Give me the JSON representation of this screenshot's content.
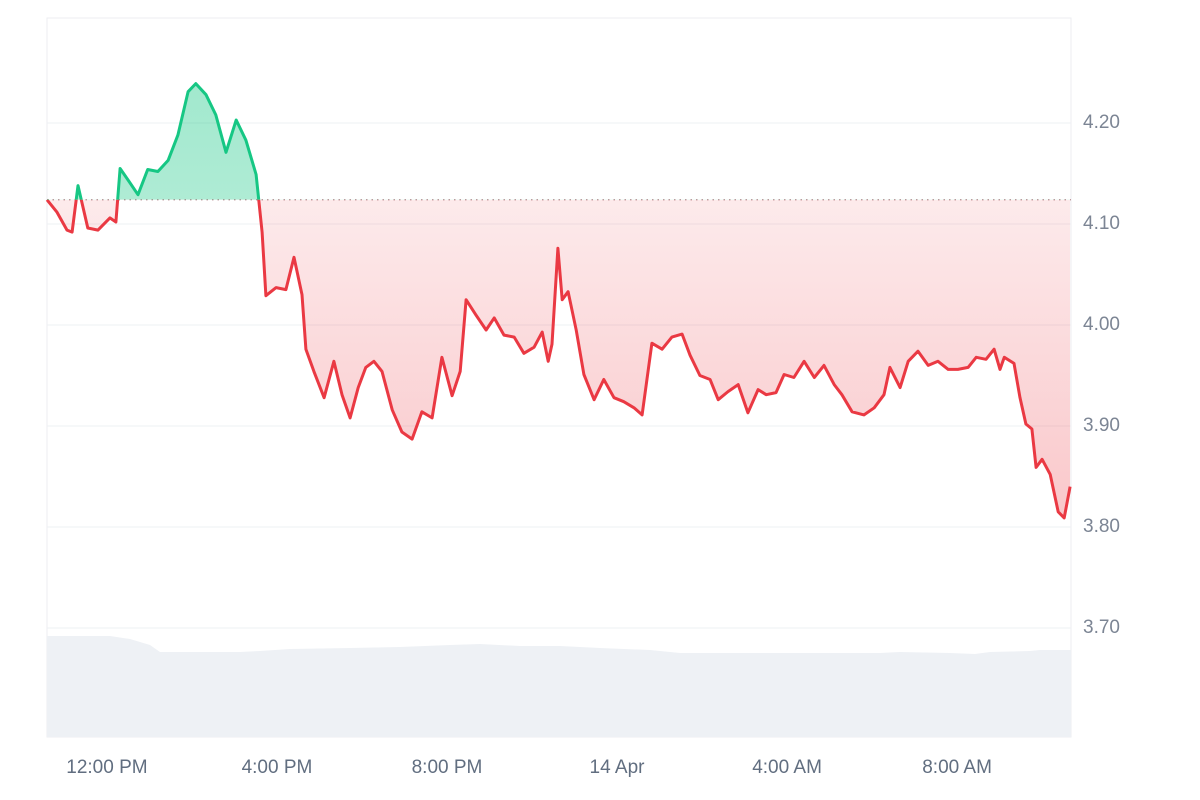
{
  "chart_data": {
    "type": "line",
    "baseline": 4.124,
    "colors": {
      "above": "#16c784",
      "below": "#ea3943"
    },
    "grid": true,
    "xlim": [
      10.59,
      34.68
    ],
    "xticks": [
      {
        "value": 12,
        "label": "12:00 PM"
      },
      {
        "value": 16,
        "label": "4:00 PM"
      },
      {
        "value": 20,
        "label": "8:00 PM"
      },
      {
        "value": 24,
        "label": "14 Apr"
      },
      {
        "value": 28,
        "label": "4:00 AM"
      },
      {
        "value": 32,
        "label": "8:00 AM"
      }
    ],
    "ylim": [
      3.592,
      4.304
    ],
    "yticks": [
      {
        "value": 3.7,
        "label": "3.70"
      },
      {
        "value": 3.8,
        "label": "3.80"
      },
      {
        "value": 3.9,
        "label": "3.90"
      },
      {
        "value": 4.0,
        "label": "4.00"
      },
      {
        "value": 4.1,
        "label": "4.10"
      },
      {
        "value": 4.2,
        "label": "4.20"
      }
    ],
    "x": [
      10.59,
      10.82,
      11.06,
      11.18,
      11.32,
      11.55,
      11.79,
      12.07,
      12.21,
      12.31,
      12.49,
      12.73,
      12.96,
      13.2,
      13.44,
      13.67,
      13.91,
      14.09,
      14.33,
      14.56,
      14.8,
      15.04,
      15.27,
      15.51,
      15.65,
      15.74,
      15.98,
      16.21,
      16.4,
      16.59,
      16.68,
      16.87,
      17.11,
      17.34,
      17.53,
      17.72,
      17.91,
      18.09,
      18.28,
      18.47,
      18.71,
      18.94,
      19.18,
      19.41,
      19.65,
      19.88,
      20.12,
      20.31,
      20.45,
      20.68,
      20.92,
      21.11,
      21.34,
      21.58,
      21.81,
      22.05,
      22.24,
      22.38,
      22.47,
      22.61,
      22.71,
      22.85,
      23.04,
      23.22,
      23.46,
      23.69,
      23.93,
      24.16,
      24.4,
      24.59,
      24.82,
      25.06,
      25.29,
      25.53,
      25.72,
      25.95,
      26.19,
      26.38,
      26.61,
      26.85,
      27.08,
      27.32,
      27.51,
      27.74,
      27.93,
      28.16,
      28.4,
      28.64,
      28.87,
      29.11,
      29.29,
      29.53,
      29.81,
      30.05,
      30.28,
      30.42,
      30.66,
      30.85,
      31.08,
      31.32,
      31.55,
      31.79,
      32.02,
      32.26,
      32.45,
      32.68,
      32.87,
      33.01,
      33.11,
      33.34,
      33.48,
      33.62,
      33.76,
      33.86,
      34.0,
      34.19,
      34.38,
      34.52,
      34.66
    ],
    "values": [
      4.124,
      4.112,
      4.094,
      4.092,
      4.138,
      4.096,
      4.094,
      4.106,
      4.102,
      4.155,
      4.144,
      4.129,
      4.154,
      4.152,
      4.163,
      4.188,
      4.231,
      4.239,
      4.228,
      4.208,
      4.171,
      4.203,
      4.183,
      4.149,
      4.092,
      4.029,
      4.037,
      4.035,
      4.067,
      4.03,
      3.976,
      3.954,
      3.928,
      3.964,
      3.931,
      3.908,
      3.938,
      3.958,
      3.964,
      3.954,
      3.916,
      3.894,
      3.887,
      3.914,
      3.908,
      3.968,
      3.93,
      3.954,
      4.025,
      4.01,
      3.995,
      4.007,
      3.99,
      3.988,
      3.972,
      3.978,
      3.993,
      3.964,
      3.981,
      4.076,
      4.025,
      4.033,
      3.995,
      3.951,
      3.926,
      3.946,
      3.928,
      3.924,
      3.918,
      3.911,
      3.982,
      3.976,
      3.988,
      3.991,
      3.97,
      3.95,
      3.946,
      3.926,
      3.934,
      3.941,
      3.913,
      3.936,
      3.931,
      3.933,
      3.951,
      3.948,
      3.964,
      3.948,
      3.96,
      3.941,
      3.931,
      3.914,
      3.911,
      3.918,
      3.931,
      3.958,
      3.938,
      3.964,
      3.974,
      3.96,
      3.964,
      3.956,
      3.956,
      3.958,
      3.968,
      3.966,
      3.976,
      3.956,
      3.968,
      3.962,
      3.928,
      3.902,
      3.897,
      3.859,
      3.867,
      3.852,
      3.815,
      3.809,
      3.84
    ]
  }
}
